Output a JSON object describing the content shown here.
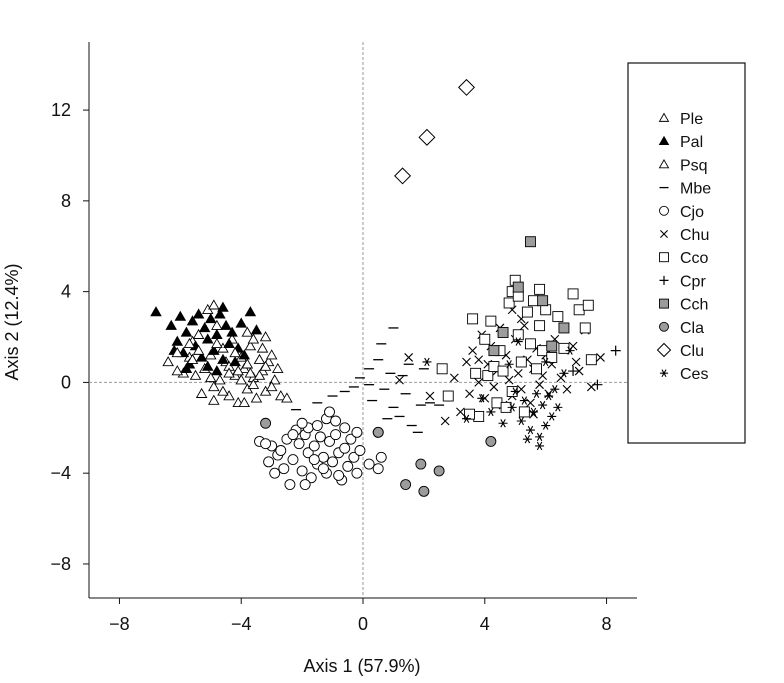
{
  "chart_data": {
    "type": "scatter",
    "xlabel": "Axis 1 (57.9%)",
    "ylabel": "Axis 2 (12.4%)",
    "xlim": [
      -9,
      9
    ],
    "ylim": [
      -9.5,
      15
    ],
    "xticks": [
      -8,
      -4,
      0,
      4,
      8
    ],
    "yticks": [
      -8,
      -4,
      0,
      4,
      8,
      12
    ],
    "zero_lines": true,
    "legend_position": "right",
    "series": [
      {
        "name": "Ple",
        "marker": "triangle-open",
        "points": [
          [
            -5.9,
            0.4
          ],
          [
            -5.6,
            1.8
          ],
          [
            -5.4,
            2.1
          ],
          [
            -5.2,
            0.6
          ],
          [
            -5.0,
            1.2
          ],
          [
            -4.9,
            -0.2
          ],
          [
            -4.8,
            2.5
          ],
          [
            -4.6,
            1.5
          ],
          [
            -4.5,
            0.9
          ],
          [
            -4.4,
            -0.6
          ],
          [
            -4.3,
            1.9
          ],
          [
            -4.2,
            0.3
          ],
          [
            -4.1,
            -0.9
          ],
          [
            -4.0,
            1.1
          ],
          [
            -3.9,
            0.6
          ],
          [
            -3.8,
            -0.3
          ],
          [
            -3.7,
            1.6
          ],
          [
            -3.6,
            0.2
          ],
          [
            -3.5,
            -0.7
          ],
          [
            -3.4,
            1.0
          ],
          [
            -3.3,
            0.5
          ],
          [
            -3.2,
            -0.4
          ],
          [
            -3.1,
            0.9
          ],
          [
            -3.0,
            1.2
          ],
          [
            -2.9,
            0.1
          ],
          [
            -3.8,
            2.2
          ],
          [
            -4.7,
            0.1
          ],
          [
            -5.3,
            -0.5
          ],
          [
            -5.5,
            0.3
          ],
          [
            -3.6,
            1.9
          ],
          [
            -3.2,
            2.0
          ],
          [
            -4.4,
            0.7
          ],
          [
            -3.9,
            -0.9
          ],
          [
            -2.7,
            -0.6
          ],
          [
            -5.1,
            3.2
          ],
          [
            -4.9,
            3.4
          ],
          [
            -5.7,
            1.1
          ],
          [
            -6.1,
            0.5
          ]
        ]
      },
      {
        "name": "Pal",
        "marker": "triangle-filled",
        "points": [
          [
            -6.8,
            3.1
          ],
          [
            -6.3,
            2.5
          ],
          [
            -6.1,
            1.8
          ],
          [
            -6.0,
            2.9
          ],
          [
            -5.9,
            1.3
          ],
          [
            -5.8,
            2.2
          ],
          [
            -5.7,
            0.8
          ],
          [
            -5.6,
            2.7
          ],
          [
            -5.5,
            1.6
          ],
          [
            -5.4,
            3.0
          ],
          [
            -5.3,
            1.1
          ],
          [
            -5.2,
            2.4
          ],
          [
            -5.1,
            1.9
          ],
          [
            -5.0,
            2.8
          ],
          [
            -4.9,
            1.4
          ],
          [
            -4.8,
            2.1
          ],
          [
            -4.7,
            3.0
          ],
          [
            -4.6,
            1.0
          ],
          [
            -4.5,
            2.5
          ],
          [
            -4.4,
            1.7
          ],
          [
            -4.3,
            2.2
          ],
          [
            -4.2,
            0.9
          ],
          [
            -4.1,
            1.5
          ],
          [
            -4.0,
            2.6
          ],
          [
            -3.9,
            1.2
          ],
          [
            -3.5,
            2.3
          ],
          [
            -3.7,
            3.1
          ],
          [
            -5.8,
            0.6
          ],
          [
            -6.2,
            1.4
          ],
          [
            -4.8,
            0.5
          ],
          [
            -5.1,
            0.7
          ],
          [
            -4.6,
            3.3
          ]
        ]
      },
      {
        "name": "Psq",
        "marker": "triangle-open",
        "points": [
          [
            -6.4,
            0.9
          ],
          [
            -6.1,
            1.3
          ],
          [
            -5.6,
            1.0
          ],
          [
            -5.0,
            0.2
          ],
          [
            -4.8,
            1.7
          ],
          [
            -4.6,
            -0.4
          ],
          [
            -4.4,
            0.4
          ],
          [
            -4.2,
            1.3
          ],
          [
            -4.0,
            0.1
          ],
          [
            -3.8,
            0.8
          ],
          [
            -3.6,
            -0.1
          ],
          [
            -3.4,
            0.3
          ],
          [
            -3.2,
            0.7
          ],
          [
            -3.0,
            -0.2
          ],
          [
            -4.9,
            -0.8
          ],
          [
            -5.4,
            1.4
          ],
          [
            -3.3,
            1.5
          ],
          [
            -2.5,
            -0.7
          ],
          [
            -4.1,
            0.5
          ],
          [
            -3.7,
            0.4
          ],
          [
            -5.7,
            1.7
          ],
          [
            -2.8,
            0.6
          ]
        ]
      },
      {
        "name": "Mbe",
        "marker": "dash",
        "points": [
          [
            -2.2,
            -1.2
          ],
          [
            -1.5,
            -0.9
          ],
          [
            -1.0,
            -0.6
          ],
          [
            -0.6,
            -0.4
          ],
          [
            -0.3,
            -0.2
          ],
          [
            -0.1,
            0.2
          ],
          [
            0.2,
            0.6
          ],
          [
            0.3,
            -0.8
          ],
          [
            0.5,
            1.0
          ],
          [
            0.7,
            -0.3
          ],
          [
            0.9,
            0.4
          ],
          [
            1.0,
            -1.1
          ],
          [
            1.2,
            -1.5
          ],
          [
            1.4,
            -0.5
          ],
          [
            1.5,
            0.8
          ],
          [
            1.6,
            -1.9
          ],
          [
            1.8,
            -2.2
          ],
          [
            1.9,
            -1.0
          ],
          [
            2.2,
            -0.9
          ],
          [
            2.5,
            -1.0
          ],
          [
            1.0,
            2.4
          ],
          [
            0.6,
            1.7
          ],
          [
            0.2,
            -0.1
          ],
          [
            1.3,
            0.3
          ],
          [
            2.0,
            0.6
          ],
          [
            0.8,
            -1.6
          ]
        ]
      },
      {
        "name": "Cjo",
        "marker": "circle-open",
        "points": [
          [
            -3.4,
            -2.6
          ],
          [
            -3.1,
            -3.5
          ],
          [
            -3.0,
            -2.8
          ],
          [
            -2.9,
            -4.0
          ],
          [
            -2.8,
            -3.2
          ],
          [
            -2.6,
            -3.8
          ],
          [
            -2.5,
            -2.5
          ],
          [
            -2.4,
            -4.5
          ],
          [
            -2.3,
            -3.4
          ],
          [
            -2.1,
            -2.7
          ],
          [
            -2.0,
            -3.9
          ],
          [
            -1.9,
            -2.3
          ],
          [
            -1.8,
            -3.1
          ],
          [
            -1.7,
            -4.2
          ],
          [
            -1.6,
            -2.8
          ],
          [
            -1.5,
            -3.6
          ],
          [
            -1.4,
            -2.4
          ],
          [
            -1.3,
            -3.3
          ],
          [
            -1.2,
            -4.0
          ],
          [
            -1.1,
            -2.6
          ],
          [
            -1.0,
            -3.5
          ],
          [
            -0.9,
            -2.3
          ],
          [
            -0.8,
            -3.1
          ],
          [
            -0.7,
            -4.3
          ],
          [
            -0.6,
            -2.9
          ],
          [
            -0.5,
            -3.7
          ],
          [
            -0.4,
            -2.5
          ],
          [
            -0.3,
            -3.3
          ],
          [
            -0.2,
            -4.0
          ],
          [
            -0.1,
            -3.0
          ],
          [
            -1.8,
            -2.0
          ],
          [
            -1.2,
            -1.6
          ],
          [
            -0.9,
            -1.7
          ],
          [
            -2.2,
            -2.1
          ],
          [
            -1.5,
            -1.9
          ],
          [
            -2.7,
            -3.0
          ],
          [
            -3.2,
            -2.7
          ],
          [
            -2.0,
            -1.8
          ],
          [
            -0.8,
            -4.1
          ],
          [
            -1.9,
            -4.5
          ],
          [
            -2.3,
            -2.3
          ],
          [
            0.5,
            -3.8
          ],
          [
            0.6,
            -3.3
          ],
          [
            0.5,
            -2.2
          ],
          [
            -1.1,
            -1.3
          ],
          [
            -0.6,
            -2.0
          ],
          [
            -1.6,
            -3.4
          ],
          [
            0.2,
            -3.6
          ],
          [
            -0.2,
            -2.2
          ],
          [
            -1.3,
            -3.8
          ]
        ]
      },
      {
        "name": "Chu",
        "marker": "x",
        "points": [
          [
            1.2,
            0.1
          ],
          [
            1.5,
            1.1
          ],
          [
            2.2,
            -0.6
          ],
          [
            3.0,
            0.2
          ],
          [
            3.2,
            -1.3
          ],
          [
            3.4,
            0.9
          ],
          [
            3.5,
            -0.5
          ],
          [
            3.6,
            1.4
          ],
          [
            3.8,
            0.0
          ],
          [
            3.9,
            2.1
          ],
          [
            4.0,
            -0.7
          ],
          [
            4.1,
            0.8
          ],
          [
            4.2,
            1.6
          ],
          [
            4.3,
            -0.2
          ],
          [
            4.4,
            0.5
          ],
          [
            4.5,
            2.4
          ],
          [
            4.6,
            -1.0
          ],
          [
            4.7,
            1.2
          ],
          [
            4.8,
            0.1
          ],
          [
            4.9,
            -0.6
          ],
          [
            5.0,
            1.9
          ],
          [
            5.1,
            0.4
          ],
          [
            5.2,
            -0.3
          ],
          [
            5.3,
            2.5
          ],
          [
            5.4,
            1.0
          ],
          [
            5.5,
            -0.9
          ],
          [
            5.6,
            0.6
          ],
          [
            5.7,
            1.5
          ],
          [
            5.8,
            -0.1
          ],
          [
            5.9,
            0.3
          ],
          [
            6.0,
            1.2
          ],
          [
            6.1,
            -0.5
          ],
          [
            6.2,
            0.8
          ],
          [
            6.3,
            1.9
          ],
          [
            6.5,
            0.2
          ],
          [
            6.7,
            -0.3
          ],
          [
            6.9,
            1.6
          ],
          [
            7.1,
            0.5
          ],
          [
            7.3,
            2.3
          ],
          [
            7.5,
            -0.2
          ],
          [
            7.8,
            1.1
          ],
          [
            4.9,
            3.2
          ],
          [
            5.2,
            2.8
          ],
          [
            3.8,
            1.0
          ],
          [
            2.7,
            -1.7
          ],
          [
            6.4,
            2.9
          ],
          [
            7.0,
            0.9
          ],
          [
            5.6,
            -1.4
          ]
        ]
      },
      {
        "name": "Cco",
        "marker": "square-open",
        "points": [
          [
            2.6,
            0.6
          ],
          [
            2.8,
            -0.6
          ],
          [
            3.6,
            2.8
          ],
          [
            3.7,
            0.4
          ],
          [
            3.8,
            -1.5
          ],
          [
            4.0,
            1.9
          ],
          [
            4.1,
            0.3
          ],
          [
            4.2,
            2.7
          ],
          [
            4.3,
            0.7
          ],
          [
            4.4,
            -0.9
          ],
          [
            4.5,
            1.4
          ],
          [
            4.6,
            0.5
          ],
          [
            4.8,
            3.5
          ],
          [
            4.9,
            -0.4
          ],
          [
            5.0,
            4.5
          ],
          [
            5.1,
            2.1
          ],
          [
            5.2,
            0.9
          ],
          [
            5.3,
            -1.3
          ],
          [
            5.4,
            3.1
          ],
          [
            5.5,
            1.7
          ],
          [
            5.6,
            3.6
          ],
          [
            5.7,
            0.6
          ],
          [
            5.8,
            2.5
          ],
          [
            5.9,
            1.4
          ],
          [
            6.0,
            3.2
          ],
          [
            6.2,
            1.1
          ],
          [
            6.4,
            2.9
          ],
          [
            6.6,
            1.5
          ],
          [
            6.9,
            3.9
          ],
          [
            7.1,
            3.2
          ],
          [
            7.3,
            2.4
          ],
          [
            7.4,
            3.4
          ],
          [
            7.5,
            1.0
          ],
          [
            4.9,
            4.0
          ],
          [
            5.1,
            3.8
          ],
          [
            4.7,
            -1.1
          ],
          [
            3.5,
            -1.4
          ],
          [
            5.8,
            4.1
          ]
        ]
      },
      {
        "name": "Cpr",
        "marker": "plus",
        "points": [
          [
            8.3,
            1.4
          ],
          [
            7.7,
            -0.1
          ],
          [
            6.9,
            0.5
          ]
        ]
      },
      {
        "name": "Cch",
        "marker": "square-filled",
        "points": [
          [
            5.5,
            6.2
          ],
          [
            5.1,
            4.2
          ],
          [
            5.9,
            3.6
          ],
          [
            4.6,
            2.2
          ],
          [
            6.6,
            2.4
          ],
          [
            4.3,
            1.4
          ],
          [
            6.2,
            1.6
          ]
        ]
      },
      {
        "name": "Cla",
        "marker": "circle-gray",
        "points": [
          [
            -3.2,
            -1.8
          ],
          [
            0.5,
            -2.2
          ],
          [
            1.9,
            -3.6
          ],
          [
            2.5,
            -3.9
          ],
          [
            4.2,
            -2.6
          ],
          [
            1.4,
            -4.5
          ],
          [
            2.0,
            -4.8
          ]
        ]
      },
      {
        "name": "Clu",
        "marker": "diamond-open",
        "points": [
          [
            1.3,
            9.1
          ],
          [
            2.1,
            10.8
          ],
          [
            3.4,
            13.0
          ]
        ]
      },
      {
        "name": "Ces",
        "marker": "star",
        "points": [
          [
            2.1,
            0.9
          ],
          [
            3.4,
            -1.6
          ],
          [
            3.9,
            -0.7
          ],
          [
            4.2,
            -1.3
          ],
          [
            4.6,
            -1.8
          ],
          [
            4.9,
            -1.1
          ],
          [
            5.0,
            -0.4
          ],
          [
            5.2,
            -1.7
          ],
          [
            5.3,
            -0.8
          ],
          [
            5.5,
            -2.1
          ],
          [
            5.6,
            -1.3
          ],
          [
            5.7,
            -0.5
          ],
          [
            5.8,
            -2.4
          ],
          [
            5.9,
            -1.0
          ],
          [
            6.0,
            -1.9
          ],
          [
            6.1,
            -0.6
          ],
          [
            6.2,
            -1.5
          ],
          [
            6.3,
            -0.3
          ],
          [
            6.4,
            -1.1
          ],
          [
            6.6,
            0.4
          ],
          [
            5.8,
            -2.8
          ],
          [
            5.4,
            -2.5
          ],
          [
            4.8,
            0.8
          ],
          [
            6.8,
            1.4
          ],
          [
            5.1,
            1.8
          ],
          [
            6.0,
            0.9
          ]
        ]
      }
    ]
  }
}
